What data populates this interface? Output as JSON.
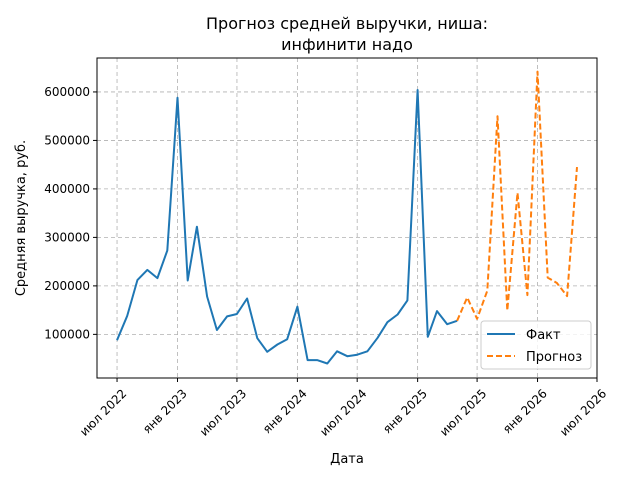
{
  "chart_data": {
    "type": "line",
    "title": "Прогноз средней выручки, ниша:\nинфинити надо",
    "xlabel": "Дата",
    "ylabel": "Средняя выручка, руб.",
    "x_ticks": [
      {
        "date": "2022-07-01",
        "label": "июл 2022"
      },
      {
        "date": "2023-01-01",
        "label": "янв 2023"
      },
      {
        "date": "2023-07-01",
        "label": "июл 2023"
      },
      {
        "date": "2024-01-01",
        "label": "янв 2024"
      },
      {
        "date": "2024-07-01",
        "label": "июл 2024"
      },
      {
        "date": "2025-01-01",
        "label": "янв 2025"
      },
      {
        "date": "2025-07-01",
        "label": "июл 2025"
      },
      {
        "date": "2026-01-01",
        "label": "янв 2026"
      },
      {
        "date": "2026-07-01",
        "label": "июл 2026"
      }
    ],
    "y_ticks": [
      100000,
      200000,
      300000,
      400000,
      500000,
      600000
    ],
    "xlim": [
      "2022-05-01",
      "2026-07-01"
    ],
    "ylim": [
      10000,
      670000
    ],
    "grid": true,
    "legend_position": "lower-right",
    "series": [
      {
        "name": "Факт",
        "color": "#1f77b4",
        "style": "solid",
        "points": [
          {
            "x": "2022-07-01",
            "y": 88000
          },
          {
            "x": "2022-08-01",
            "y": 138000
          },
          {
            "x": "2022-09-01",
            "y": 212000
          },
          {
            "x": "2022-10-01",
            "y": 233000
          },
          {
            "x": "2022-11-01",
            "y": 216000
          },
          {
            "x": "2022-12-01",
            "y": 273000
          },
          {
            "x": "2023-01-01",
            "y": 588000
          },
          {
            "x": "2023-02-01",
            "y": 211000
          },
          {
            "x": "2023-03-01",
            "y": 322000
          },
          {
            "x": "2023-04-01",
            "y": 178000
          },
          {
            "x": "2023-05-01",
            "y": 109000
          },
          {
            "x": "2023-06-01",
            "y": 137000
          },
          {
            "x": "2023-07-01",
            "y": 142000
          },
          {
            "x": "2023-08-01",
            "y": 174000
          },
          {
            "x": "2023-09-01",
            "y": 92000
          },
          {
            "x": "2023-10-01",
            "y": 64000
          },
          {
            "x": "2023-11-01",
            "y": 79000
          },
          {
            "x": "2023-12-01",
            "y": 90000
          },
          {
            "x": "2024-01-01",
            "y": 157000
          },
          {
            "x": "2024-02-01",
            "y": 47000
          },
          {
            "x": "2024-03-01",
            "y": 47000
          },
          {
            "x": "2024-04-01",
            "y": 40000
          },
          {
            "x": "2024-05-01",
            "y": 65000
          },
          {
            "x": "2024-06-01",
            "y": 55000
          },
          {
            "x": "2024-07-01",
            "y": 58000
          },
          {
            "x": "2024-08-01",
            "y": 65000
          },
          {
            "x": "2024-09-01",
            "y": 93000
          },
          {
            "x": "2024-10-01",
            "y": 125000
          },
          {
            "x": "2024-11-01",
            "y": 141000
          },
          {
            "x": "2024-12-01",
            "y": 170000
          },
          {
            "x": "2025-01-01",
            "y": 604000
          },
          {
            "x": "2025-02-01",
            "y": 95000
          },
          {
            "x": "2025-03-01",
            "y": 148000
          },
          {
            "x": "2025-04-01",
            "y": 121000
          },
          {
            "x": "2025-05-01",
            "y": 128000
          }
        ]
      },
      {
        "name": "Прогноз",
        "color": "#ff7f0e",
        "style": "dashed",
        "points": [
          {
            "x": "2025-05-01",
            "y": 128000
          },
          {
            "x": "2025-06-01",
            "y": 176000
          },
          {
            "x": "2025-07-01",
            "y": 132000
          },
          {
            "x": "2025-08-01",
            "y": 190000
          },
          {
            "x": "2025-09-01",
            "y": 550000
          },
          {
            "x": "2025-10-01",
            "y": 149000
          },
          {
            "x": "2025-11-01",
            "y": 392000
          },
          {
            "x": "2025-12-01",
            "y": 181000
          },
          {
            "x": "2026-01-01",
            "y": 642000
          },
          {
            "x": "2026-02-01",
            "y": 217000
          },
          {
            "x": "2026-03-01",
            "y": 206000
          },
          {
            "x": "2026-04-01",
            "y": 179000
          },
          {
            "x": "2026-05-01",
            "y": 445000
          }
        ]
      }
    ]
  }
}
